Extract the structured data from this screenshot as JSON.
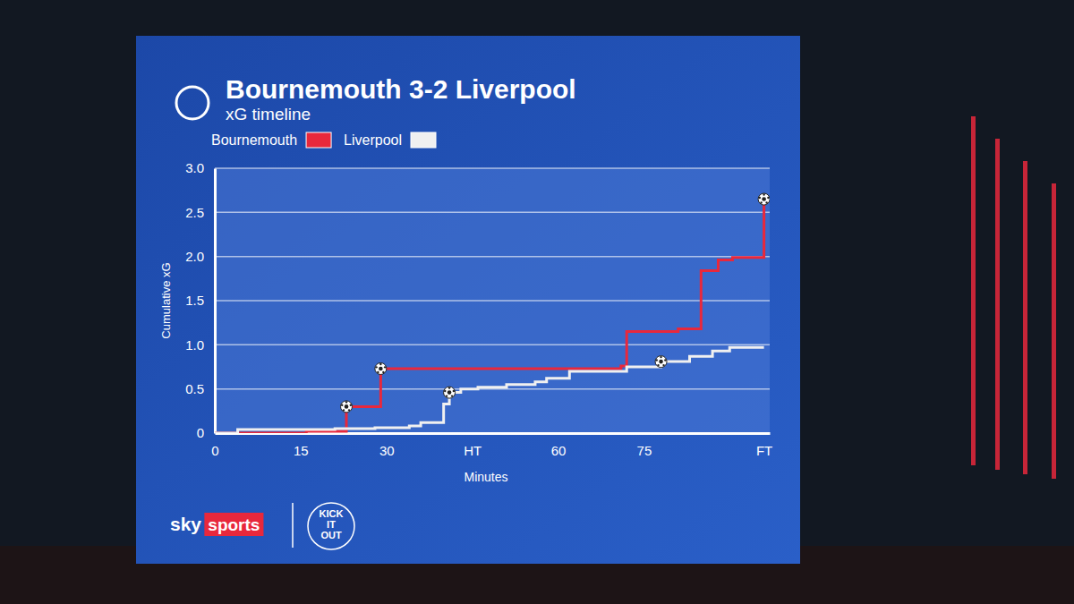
{
  "chart_data": {
    "type": "line",
    "title": "Bournemouth 3-2 Liverpool",
    "subtitle": "xG timeline",
    "x_label": "Minutes",
    "y_label": "Cumulative xG",
    "line_style": "step",
    "marker": "ball",
    "grid": true,
    "legend": "top-left",
    "xlim": [
      0,
      97
    ],
    "xticks": [
      0,
      15,
      30,
      {
        "value": 45,
        "label": "HT"
      },
      60,
      75,
      {
        "value": 96,
        "label": "FT"
      }
    ],
    "ylim": [
      0,
      3
    ],
    "yticks": [
      0,
      0.5,
      {
        "value": 1,
        "label": "1.0"
      },
      1.5,
      {
        "value": 2,
        "label": "2.0"
      },
      2.5,
      {
        "value": 3,
        "label": "3.0"
      }
    ],
    "series": [
      {
        "name": "Bournemouth",
        "color": "#e8283c",
        "x": [
          0,
          16,
          23,
          29,
          71,
          72,
          81,
          85,
          88,
          90.5,
          96
        ],
        "values": [
          0,
          0.02,
          0.3,
          0.73,
          0.76,
          1.15,
          1.18,
          1.84,
          1.96,
          1.99,
          2.65
        ],
        "goals": [
          23,
          29,
          96
        ]
      },
      {
        "name": "Liverpool",
        "color": "#f0f0f0",
        "x": [
          0,
          4,
          21,
          28,
          34,
          36,
          40,
          41,
          43,
          46,
          51,
          56,
          58,
          62,
          72,
          78,
          83,
          87,
          90,
          96
        ],
        "values": [
          0,
          0.04,
          0.05,
          0.06,
          0.08,
          0.12,
          0.33,
          0.46,
          0.5,
          0.52,
          0.55,
          0.58,
          0.62,
          0.7,
          0.75,
          0.81,
          0.87,
          0.93,
          0.97,
          0.97
        ],
        "goals": [
          41,
          78
        ]
      }
    ],
    "annotations": [
      "sky",
      "sports",
      "KICK IT OUT"
    ]
  }
}
